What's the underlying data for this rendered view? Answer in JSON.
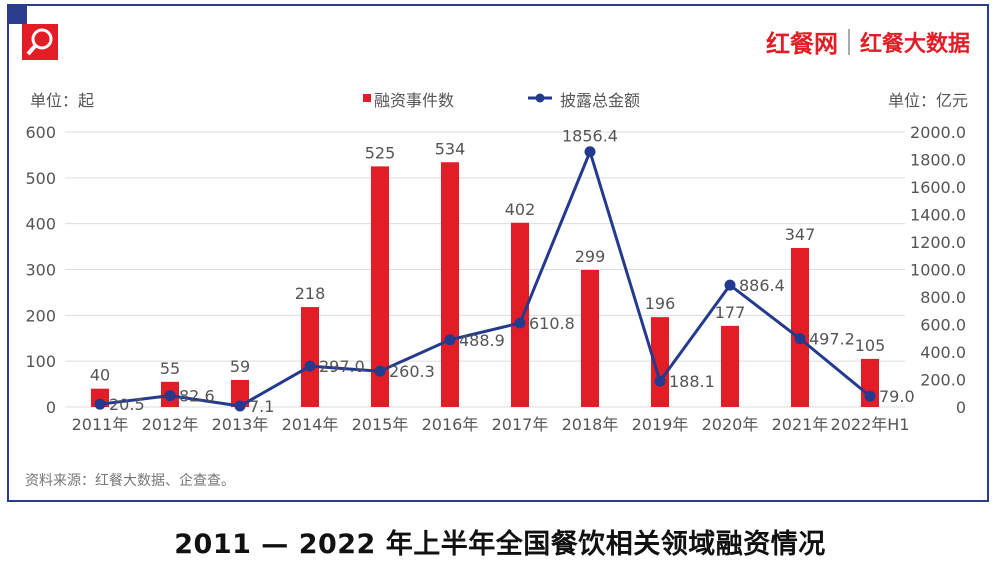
{
  "brand": {
    "logo_text_1": "红餐网",
    "logo_text_2": "红餐大数据"
  },
  "title": "2011 — 2022 年上半年全国餐饮相关领域融资情况",
  "source": "资料来源：红餐大数据、企查查。",
  "colors": {
    "bar": "#e31d25",
    "line": "#233a8f",
    "frame": "#2b3d8f"
  },
  "chart_data": {
    "type": "bar+line",
    "categories": [
      "2011年",
      "2012年",
      "2013年",
      "2014年",
      "2015年",
      "2016年",
      "2017年",
      "2018年",
      "2019年",
      "2020年",
      "2021年",
      "2022年H1"
    ],
    "series": [
      {
        "name": "融资事件数",
        "type": "bar",
        "axis": "left",
        "values": [
          40,
          55,
          59,
          218,
          525,
          534,
          402,
          299,
          196,
          177,
          347,
          105
        ],
        "labels": [
          "40",
          "55",
          "59",
          "218",
          "525",
          "534",
          "402",
          "299",
          "196",
          "177",
          "347",
          "105"
        ]
      },
      {
        "name": "披露总金额",
        "type": "line",
        "axis": "right",
        "values": [
          20.5,
          82.6,
          7.1,
          297.0,
          260.3,
          488.9,
          610.8,
          1856.4,
          188.1,
          886.4,
          497.2,
          79.0
        ],
        "labels": [
          "20.5",
          "82.6",
          "7.1",
          "297.0",
          "260.3",
          "488.9",
          "610.8",
          "1856.4",
          "188.1",
          "886.4",
          "497.2",
          "79.0"
        ]
      }
    ],
    "left_axis": {
      "unit_label": "单位：起",
      "ylim": [
        0,
        600
      ],
      "ticks": [
        "0",
        "100",
        "200",
        "300",
        "400",
        "500",
        "600"
      ]
    },
    "right_axis": {
      "unit_label": "单位：亿元",
      "ylim": [
        0,
        2000
      ],
      "ticks": [
        "0",
        "200.0",
        "400.0",
        "600.0",
        "800.0",
        "1000.0",
        "1200.0",
        "1400.0",
        "1600.0",
        "1800.0",
        "2000.0"
      ]
    },
    "grid": "horizontal",
    "legend": "top-center"
  }
}
